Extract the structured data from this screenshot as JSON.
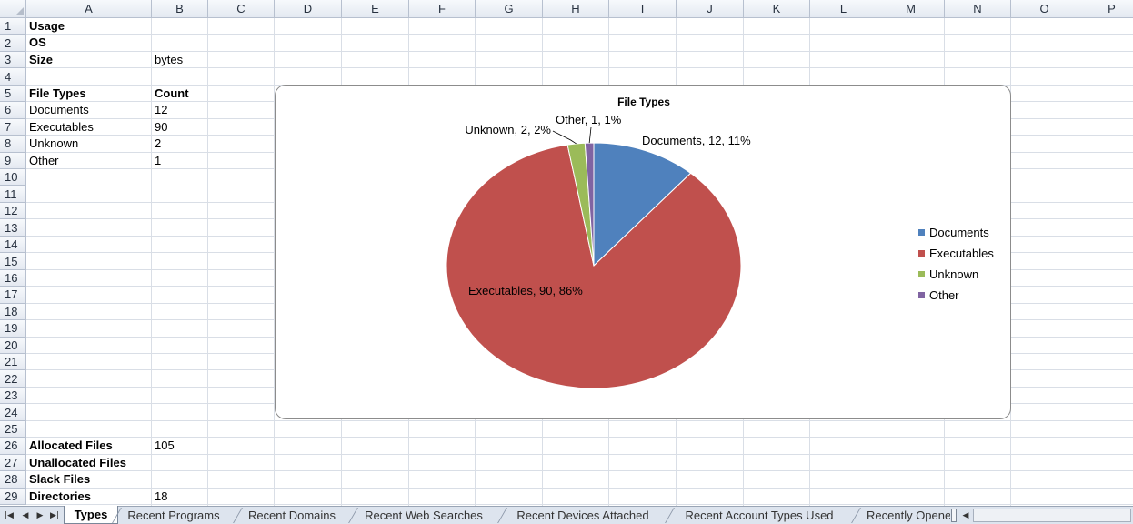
{
  "columns": [
    "A",
    "B",
    "C",
    "D",
    "E",
    "F",
    "G",
    "H",
    "I",
    "J",
    "K",
    "L",
    "M",
    "N",
    "O",
    "P"
  ],
  "rows": [
    "1",
    "2",
    "3",
    "4",
    "5",
    "6",
    "7",
    "8",
    "9",
    "10",
    "11",
    "12",
    "13",
    "14",
    "15",
    "16",
    "17",
    "18",
    "19",
    "20",
    "21",
    "22",
    "23",
    "24",
    "25",
    "26",
    "27",
    "28",
    "29"
  ],
  "cells": {
    "A1": "Usage",
    "A2": "OS",
    "A3": "Size",
    "B3": "bytes",
    "A5": "File Types",
    "B5": "Count",
    "A6": "Documents",
    "B6": "12",
    "A7": "Executables",
    "B7": "90",
    "A8": "Unknown",
    "B8": "2",
    "A9": "Other",
    "B9": "1",
    "A26": "Allocated Files",
    "B26": "105",
    "A27": "Unallocated Files",
    "A28": "Slack Files",
    "A29": "Directories",
    "B29": "18"
  },
  "chart_data": {
    "type": "pie",
    "title": "File Types",
    "categories": [
      "Documents",
      "Executables",
      "Unknown",
      "Other"
    ],
    "values": [
      12,
      90,
      2,
      1
    ],
    "colors": [
      "#4f81bd",
      "#c0504d",
      "#9bbb59",
      "#8064a2"
    ],
    "data_labels": [
      "Documents, 12, 11%",
      "Executables, 90, 86%",
      "Unknown, 2, 2%",
      "Other, 1, 1%"
    ],
    "legend": "right"
  },
  "sheet_tabs": [
    "Types",
    "Recent Programs",
    "Recent Domains",
    "Recent Web Searches",
    "Recent Devices Attached",
    "Recent Account Types Used",
    "Recently Opene"
  ],
  "active_tab": "Types",
  "nav_icons": [
    "first-sheet-icon",
    "prev-sheet-icon",
    "next-sheet-icon",
    "last-sheet-icon"
  ]
}
